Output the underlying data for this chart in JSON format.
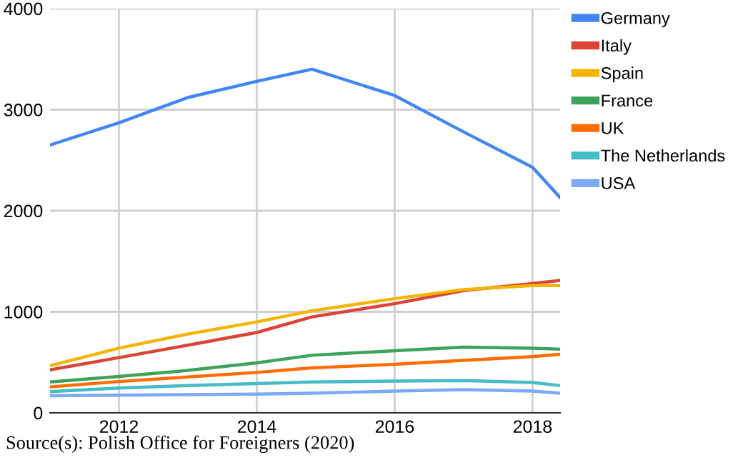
{
  "chart_data": {
    "type": "line",
    "x": [
      2011,
      2012,
      2013,
      2014,
      2014.8,
      2016,
      2017,
      2018,
      2018.4
    ],
    "series": [
      {
        "name": "Germany",
        "color": "#4285f4",
        "values": [
          2650,
          2870,
          3120,
          3280,
          3400,
          3140,
          2780,
          2430,
          2130
        ]
      },
      {
        "name": "Italy",
        "color": "#db4437",
        "values": [
          425,
          547,
          670,
          795,
          950,
          1080,
          1210,
          1280,
          1310
        ]
      },
      {
        "name": "Spain",
        "color": "#f4b400",
        "values": [
          467,
          640,
          780,
          900,
          1010,
          1130,
          1220,
          1260,
          1260
        ]
      },
      {
        "name": "France",
        "color": "#3ea35a",
        "values": [
          305,
          360,
          420,
          495,
          570,
          615,
          650,
          640,
          630
        ]
      },
      {
        "name": "UK",
        "color": "#ff6d01",
        "values": [
          257,
          310,
          355,
          400,
          445,
          480,
          520,
          557,
          580
        ]
      },
      {
        "name": "The Netherlands",
        "color": "#46bdc6",
        "values": [
          210,
          245,
          270,
          290,
          305,
          315,
          320,
          300,
          270
        ]
      },
      {
        "name": "USA",
        "color": "#7baaf7",
        "values": [
          170,
          175,
          180,
          185,
          195,
          215,
          230,
          215,
          195
        ]
      }
    ],
    "xlim": [
      2011,
      2018.4
    ],
    "xticks": [
      2012,
      2014,
      2016,
      2018
    ],
    "ylim": [
      0,
      4000
    ],
    "yticks": [
      0,
      1000,
      2000,
      3000,
      4000
    ],
    "grid": true,
    "legend": "right",
    "marker": "none",
    "line_style": "solid",
    "annotations": [
      "Source(s): Polish Office for Foreigners (2020)"
    ]
  }
}
